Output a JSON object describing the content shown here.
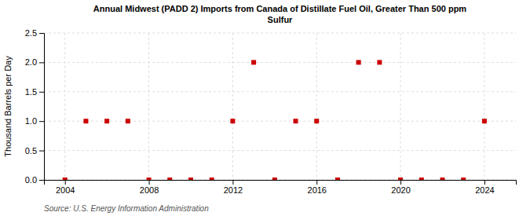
{
  "chart_data": {
    "type": "scatter",
    "title": "Annual Midwest (PADD 2) Imports from Canada of Distillate Fuel Oil, Greater Than 500 ppm\nSulfur",
    "ylabel": "Thousand Barrels per Day",
    "source": "Source: U.S. Energy Information Administration",
    "x": [
      2004,
      2005,
      2006,
      2007,
      2008,
      2009,
      2010,
      2011,
      2012,
      2013,
      2014,
      2015,
      2016,
      2017,
      2018,
      2019,
      2020,
      2021,
      2022,
      2023,
      2024
    ],
    "values": [
      0,
      1.0,
      1.0,
      1.0,
      0,
      0,
      0,
      0,
      1.0,
      2.0,
      0,
      1.0,
      1.0,
      0,
      2.0,
      2.0,
      0,
      0,
      0,
      0,
      1.0
    ],
    "color": "#cc0000",
    "marker": "square",
    "grid": true,
    "xlim": [
      2003.0,
      2025.5
    ],
    "xticks": [
      2004,
      2008,
      2012,
      2016,
      2020,
      2024
    ],
    "ylim": [
      0,
      2.5
    ],
    "yticks": [
      {
        "value": 0.0,
        "label": "0.0"
      },
      0.5,
      {
        "value": 1.0,
        "label": "1.0"
      },
      1.5,
      {
        "value": 2.0,
        "label": "2.0"
      },
      2.5
    ]
  }
}
